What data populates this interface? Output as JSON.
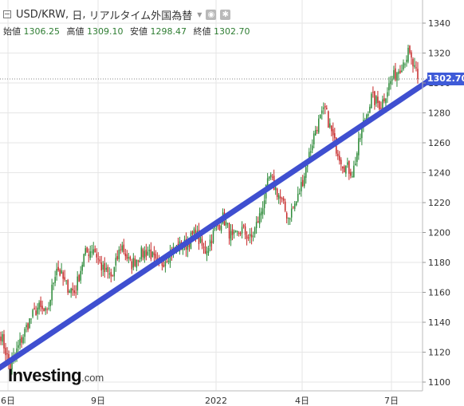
{
  "header": {
    "symbol": "USD/KRW",
    "timeframe": "日",
    "source": "リアルタイム外国為替",
    "ohlc": [
      {
        "label": "始値",
        "value": "1306.25"
      },
      {
        "label": "高値",
        "value": "1309.10"
      },
      {
        "label": "安値",
        "value": "1298.47"
      },
      {
        "label": "終値",
        "value": "1302.70"
      }
    ]
  },
  "logo": {
    "main": "Investing",
    "suffix": ".com"
  },
  "colors": {
    "up": "#2e8b3a",
    "down": "#c62828",
    "trendline": "#3f4fd0",
    "price_tag": "#3f5bd8",
    "grid": "#e6e6e6",
    "axis_text": "#333333"
  },
  "chart_data": {
    "type": "candlestick",
    "title": "USD/KRW, 日, リアルタイム外国為替",
    "ylim": [
      1095,
      1350
    ],
    "y_ticks": [
      1100,
      1120,
      1140,
      1160,
      1180,
      1200,
      1220,
      1240,
      1260,
      1280,
      1300,
      1320,
      1340
    ],
    "x_ticks": [
      "6日",
      "9日",
      "2022",
      "4日",
      "7日"
    ],
    "grid": true,
    "last_price": 1302.7,
    "last_price_label": "1302.70",
    "close_path": [
      1132,
      1110,
      1125,
      1140,
      1150,
      1145,
      1178,
      1165,
      1160,
      1185,
      1190,
      1175,
      1170,
      1192,
      1178,
      1185,
      1188,
      1176,
      1185,
      1190,
      1192,
      1200,
      1187,
      1200,
      1210,
      1195,
      1202,
      1195,
      1212,
      1237,
      1225,
      1210,
      1222,
      1245,
      1270,
      1282,
      1260,
      1245,
      1240,
      1270,
      1290,
      1285,
      1300,
      1310,
      1320,
      1302.7
    ],
    "trendline": {
      "from": [
        0,
        1108
      ],
      "to": [
        1,
        1304
      ]
    }
  }
}
